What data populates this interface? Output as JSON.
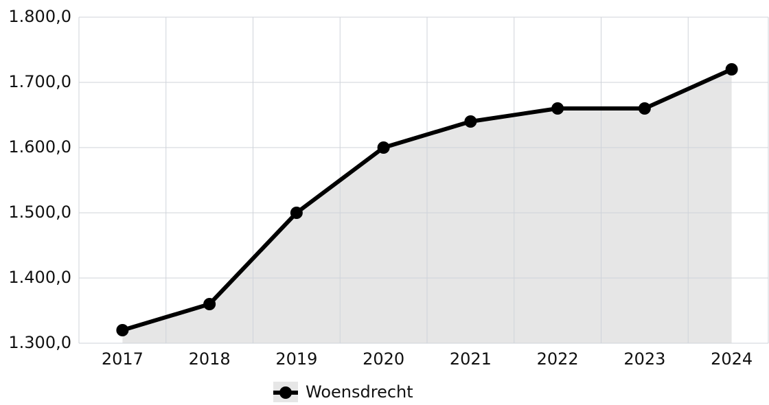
{
  "chart_data": {
    "type": "line",
    "categories": [
      "2017",
      "2018",
      "2019",
      "2020",
      "2021",
      "2022",
      "2023",
      "2024"
    ],
    "series": [
      {
        "name": "Woensdrecht",
        "color": "#000000",
        "fill": "#e6e6e6",
        "values": [
          1320,
          1360,
          1500,
          1600,
          1640,
          1660,
          1660,
          1720
        ]
      }
    ],
    "ylim": [
      1300,
      1800
    ],
    "yticks": [
      {
        "value": 1300,
        "label": "1.300,0"
      },
      {
        "value": 1400,
        "label": "1.400,0"
      },
      {
        "value": 1500,
        "label": "1.500,0"
      },
      {
        "value": 1600,
        "label": "1.600,0"
      },
      {
        "value": 1700,
        "label": "1.700,0"
      },
      {
        "value": 1800,
        "label": "1.800,0"
      }
    ],
    "grid": true,
    "legend": "bottom"
  }
}
